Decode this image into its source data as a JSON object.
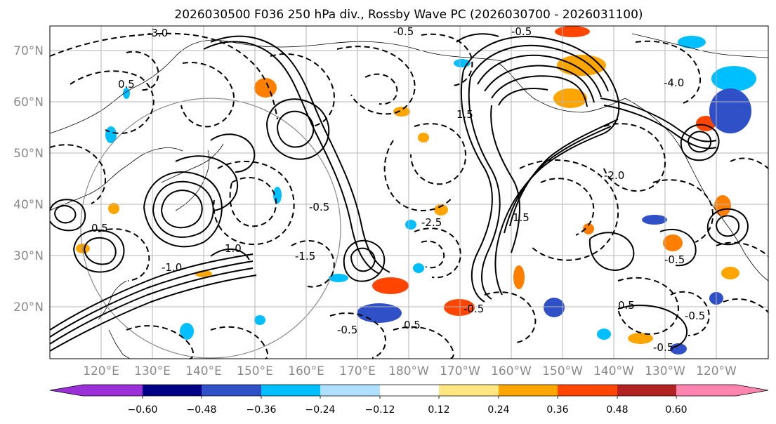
{
  "title": "2026030500 F036 250 hPa div., Rossby Wave PC (2026030700 - 2026031100)",
  "lat_labels": [
    "70°N",
    "60°N",
    "50°N",
    "40°N",
    "30°N",
    "20°N"
  ],
  "lon_labels": [
    "120°E",
    "130°E",
    "140°E",
    "150°E",
    "160°E",
    "170°E",
    "180°W",
    "170°W",
    "160°W",
    "150°W",
    "140°W",
    "130°W",
    "120°W"
  ],
  "colorbar": {
    "colors": [
      "#9b30d8",
      "#000086",
      "#3050c8",
      "#00bfff",
      "#b0e0ff",
      "#ffffff",
      "#ffe680",
      "#ffa500",
      "#ff4500",
      "#b22222",
      "#ff85b0"
    ],
    "tick_labels": [
      "−0.60",
      "−0.48",
      "−0.36",
      "−0.24",
      "−0.12",
      "0.12",
      "0.24",
      "0.36",
      "0.48",
      "0.60"
    ]
  },
  "contour_labels": [
    "-3.0",
    "-0.5",
    "-0.5",
    "0.5",
    "1.0",
    "-1.0",
    "-4.0",
    "-0.5",
    "-0.5",
    "-0.5",
    "-1.5",
    "1.5",
    "-2.0",
    "-0.5",
    "0.5",
    "-0.5",
    "-0.5",
    "0.5",
    "-2.5",
    "1.5",
    "0.5"
  ]
}
